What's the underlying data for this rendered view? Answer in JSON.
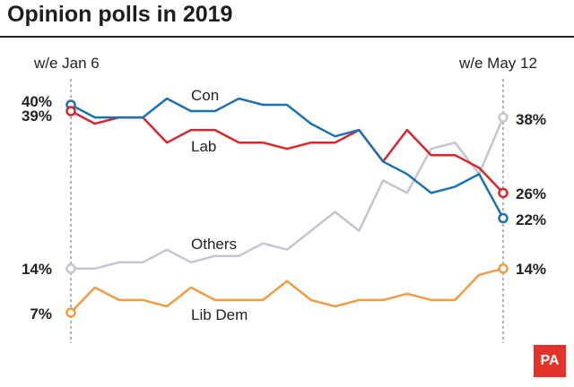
{
  "title": "Opinion polls in 2019",
  "brand": {
    "label": "PA",
    "color": "#e4322b"
  },
  "chart_data": {
    "type": "line",
    "title": "Opinion polls in 2019",
    "x_start_label": "w/e Jan 6",
    "x_end_label": "w/e May 12",
    "x": [
      1,
      2,
      3,
      4,
      5,
      6,
      7,
      8,
      9,
      10,
      11,
      12,
      13,
      14,
      15,
      16,
      17,
      18,
      19
    ],
    "ylim": [
      0,
      45
    ],
    "grid": false,
    "series": [
      {
        "name": "Con",
        "color": "#1d71ad",
        "values": [
          40,
          38,
          38,
          38,
          41,
          39,
          39,
          41,
          40,
          40,
          37,
          35,
          36,
          31,
          29,
          26,
          27,
          29,
          22
        ],
        "start_label": "40%",
        "end_label": "22%"
      },
      {
        "name": "Lab",
        "color": "#d8262f",
        "values": [
          39,
          37,
          38,
          38,
          34,
          36,
          36,
          34,
          34,
          33,
          34,
          34,
          36,
          31,
          36,
          32,
          32,
          30,
          26
        ],
        "start_label": "39%",
        "end_label": "26%"
      },
      {
        "name": "Others",
        "color": "#c6c3d3",
        "values": [
          14,
          14,
          15,
          15,
          17,
          15,
          16,
          16,
          18,
          17,
          20,
          23,
          20,
          28,
          26,
          33,
          34,
          29,
          38
        ],
        "start_label": "14%",
        "end_label": "38%"
      },
      {
        "name": "Lib Dem",
        "color": "#f09c42",
        "values": [
          7,
          11,
          9,
          9,
          8,
          11,
          9,
          9,
          9,
          12,
          9,
          8,
          9,
          9,
          10,
          9,
          9,
          13,
          14
        ],
        "start_label": "7%",
        "end_label": "14%"
      }
    ]
  }
}
